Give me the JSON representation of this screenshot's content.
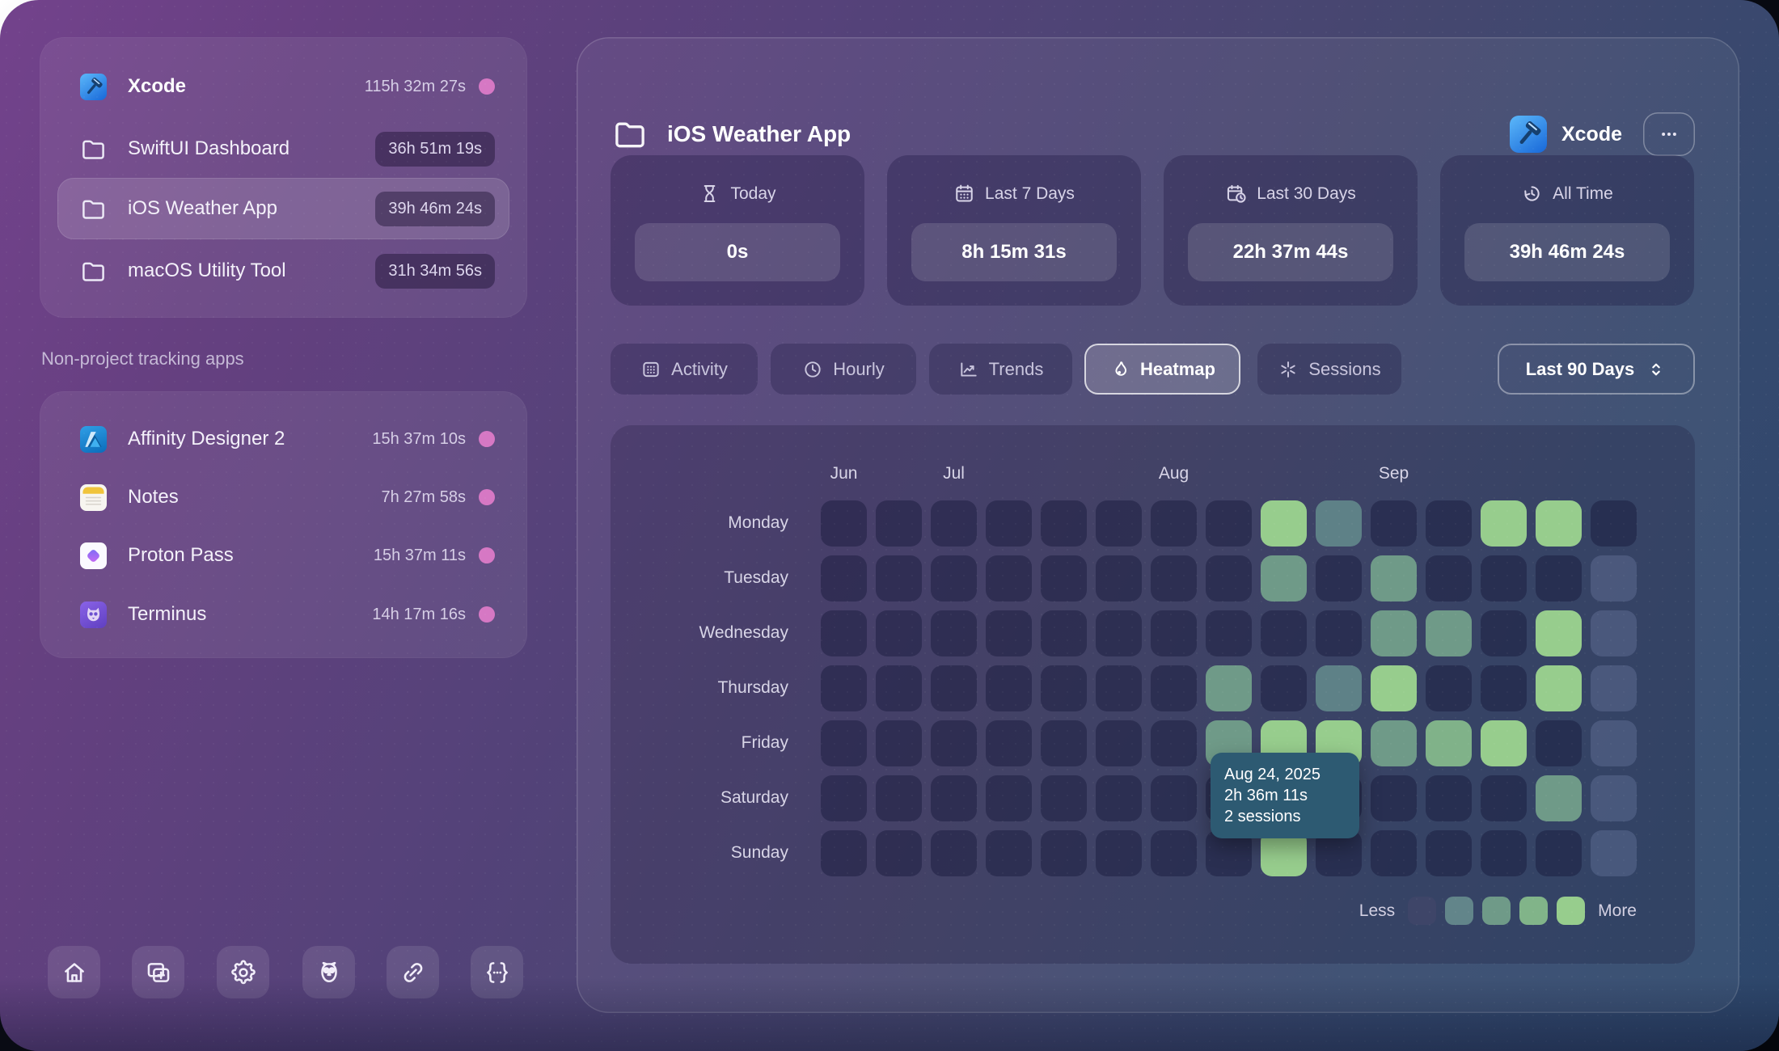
{
  "sidebar": {
    "projects": [
      {
        "icon": "xcode-app-icon",
        "name": "Xcode",
        "time": "115h 32m 27s",
        "time_display": "plain",
        "dot": true,
        "emphasis": true
      },
      {
        "icon": "folder-icon",
        "name": "SwiftUI Dashboard",
        "time": "36h 51m 19s",
        "time_display": "badge"
      },
      {
        "icon": "folder-icon",
        "name": "iOS Weather App",
        "time": "39h 46m 24s",
        "time_display": "badge",
        "selected": true
      },
      {
        "icon": "folder-icon",
        "name": "macOS Utility Tool",
        "time": "31h 34m 56s",
        "time_display": "badge"
      }
    ],
    "section_label": "Non-project tracking apps",
    "apps": [
      {
        "icon": "affinity-app-icon",
        "name": "Affinity Designer 2",
        "time": "15h 37m 10s",
        "dot": true
      },
      {
        "icon": "notes-app-icon",
        "name": "Notes",
        "time": "7h 27m 58s",
        "dot": true
      },
      {
        "icon": "proton-pass-app-icon",
        "name": "Proton Pass",
        "time": "15h 37m 11s",
        "dot": true
      },
      {
        "icon": "terminus-app-icon",
        "name": "Terminus",
        "time": "14h 17m 16s",
        "dot": true
      }
    ],
    "toolbar": [
      {
        "icon": "home-icon"
      },
      {
        "icon": "new-window-icon"
      },
      {
        "icon": "settings-gear-icon"
      },
      {
        "icon": "owl-icon"
      },
      {
        "icon": "link-icon"
      },
      {
        "icon": "code-braces-icon"
      }
    ],
    "dot_color": "#d678c4"
  },
  "main": {
    "title": "iOS Weather App",
    "title_icon": "folder-icon",
    "app_badge": {
      "icon": "xcode-app-icon",
      "label": "Xcode"
    },
    "menu_icon": "ellipsis-icon",
    "stats": [
      {
        "icon": "hourglass-icon",
        "label": "Today",
        "value": "0s"
      },
      {
        "icon": "calendar-icon",
        "label": "Last 7 Days",
        "value": "8h 15m 31s"
      },
      {
        "icon": "calendar-clock-icon",
        "label": "Last 30 Days",
        "value": "22h 37m 44s"
      },
      {
        "icon": "all-time-icon",
        "label": "All Time",
        "value": "39h 46m 24s"
      }
    ],
    "tabs": [
      {
        "icon": "activity-grid-icon",
        "label": "Activity"
      },
      {
        "icon": "clock-icon",
        "label": "Hourly"
      },
      {
        "icon": "trend-line-icon",
        "label": "Trends"
      },
      {
        "icon": "flame-drop-icon",
        "label": "Heatmap",
        "active": true
      },
      {
        "icon": "sessions-asterisk-icon",
        "label": "Sessions"
      }
    ],
    "range_dropdown": {
      "value": "Last 90 Days",
      "icon": "chevron-updown-icon"
    }
  },
  "chart_data": {
    "type": "heatmap",
    "rows": [
      "Monday",
      "Tuesday",
      "Wednesday",
      "Thursday",
      "Friday",
      "Saturday",
      "Sunday"
    ],
    "columns": 15,
    "month_markers": [
      {
        "label": "Jun",
        "col": 1
      },
      {
        "label": "Jul",
        "col": 3
      },
      {
        "label": "Aug",
        "col": 7
      },
      {
        "label": "Sep",
        "col": 11
      }
    ],
    "levels": [
      [
        0,
        0,
        0,
        0,
        0,
        0,
        0,
        0,
        4,
        1,
        0,
        0,
        4,
        4,
        0
      ],
      [
        0,
        0,
        0,
        0,
        0,
        0,
        0,
        0,
        2,
        0,
        2,
        0,
        0,
        0,
        "f"
      ],
      [
        0,
        0,
        0,
        0,
        0,
        0,
        0,
        0,
        0,
        0,
        2,
        2,
        0,
        4,
        "f"
      ],
      [
        0,
        0,
        0,
        0,
        0,
        0,
        0,
        2,
        0,
        1,
        4,
        0,
        0,
        4,
        "f"
      ],
      [
        0,
        0,
        0,
        0,
        0,
        0,
        0,
        2,
        4,
        4,
        2,
        3,
        4,
        0,
        "f"
      ],
      [
        0,
        0,
        0,
        0,
        0,
        0,
        0,
        0,
        0,
        0,
        0,
        0,
        0,
        2,
        "f"
      ],
      [
        0,
        0,
        0,
        0,
        0,
        0,
        0,
        0,
        4,
        0,
        0,
        0,
        0,
        0,
        "f"
      ]
    ],
    "level_colors": {
      "0": "rgba(18,22,56,0.42)",
      "1": "#5e8187",
      "2": "#6f9a88",
      "3": "#80b289",
      "4": "#97cd8d",
      "f": "rgba(150,162,210,0.22)"
    },
    "legend": {
      "less_label": "Less",
      "more_label": "More",
      "swatches": [
        "#3e4568",
        "#62858a",
        "#6f9a88",
        "#81b489",
        "#97cd8d"
      ]
    },
    "tooltip": {
      "date": "Aug 24, 2025",
      "duration": "2h 36m 11s",
      "sessions": "2 sessions"
    }
  }
}
